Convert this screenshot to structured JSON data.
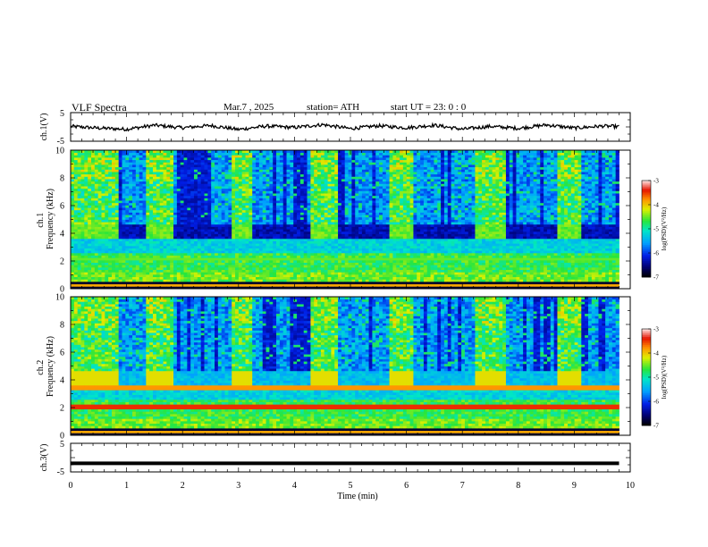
{
  "header": {
    "title": "VLF  Spectra",
    "date": "Mar.7  , 2025",
    "station": "station= ATH",
    "start_ut": "start  UT  =    23: 0   : 0"
  },
  "chart_data": [
    {
      "type": "line",
      "title": "VLF  Spectra",
      "ylabel": "ch.1(V)",
      "xlabel": "Time  (min)",
      "xlim": [
        0,
        10
      ],
      "ylim": [
        -5,
        5
      ],
      "yticks": [
        "5",
        "-5"
      ],
      "series": [
        {
          "x": [
            0,
            0.5,
            1,
            1.5,
            2,
            2.5,
            3,
            3.5,
            4,
            4.5,
            5,
            5.5,
            6,
            6.5,
            7,
            7.5,
            8,
            8.5,
            9,
            9.5,
            9.8
          ],
          "y": [
            0.2,
            -0.4,
            -0.8,
            0.6,
            -0.3,
            0.5,
            -0.9,
            0.3,
            -0.2,
            0.8,
            -0.6,
            0.4,
            -0.3,
            0.6,
            -0.8,
            0.2,
            -0.5,
            0.7,
            -0.4,
            0.3,
            0.1
          ]
        }
      ]
    },
    {
      "type": "heatmap",
      "ylabel": "ch.1\nFrequency  (kHz)",
      "xlim": [
        0,
        10
      ],
      "ylim": [
        0,
        10
      ],
      "yticks": [
        "0",
        "2",
        "4",
        "6",
        "8",
        "10"
      ],
      "colorbar": {
        "label": "log(PSD)(V²/Hz)",
        "range": [
          -7,
          -3
        ],
        "ticks": [
          "-3",
          "-4",
          "-5",
          "-6",
          "-7"
        ]
      },
      "quiet_intervals_min": [
        [
          0.85,
          1.35
        ],
        [
          1.82,
          2.85
        ],
        [
          3.25,
          4.3
        ],
        [
          4.8,
          5.72
        ],
        [
          6.15,
          7.22
        ],
        [
          7.8,
          8.7
        ],
        [
          9.1,
          9.8
        ]
      ],
      "active_intervals_min": [
        [
          0.0,
          0.85
        ],
        [
          1.35,
          1.82
        ],
        [
          2.85,
          3.25
        ],
        [
          4.3,
          4.8
        ],
        [
          5.72,
          6.15
        ],
        [
          7.22,
          7.8
        ],
        [
          8.7,
          9.1
        ]
      ]
    },
    {
      "type": "heatmap",
      "ylabel": "ch.2\nFrequency  (kHz)",
      "xlim": [
        0,
        10
      ],
      "ylim": [
        0,
        10
      ],
      "yticks": [
        "0",
        "2",
        "4",
        "6",
        "8",
        "10"
      ],
      "colorbar": {
        "label": "log(PSD)(V²/Hz)",
        "range": [
          -7,
          -3
        ],
        "ticks": [
          "-3",
          "-4",
          "-5",
          "-6",
          "-7"
        ]
      },
      "quiet_intervals_min": [
        [
          0.85,
          1.35
        ],
        [
          1.82,
          2.85
        ],
        [
          3.25,
          4.3
        ],
        [
          4.8,
          5.72
        ],
        [
          6.15,
          7.22
        ],
        [
          7.8,
          8.7
        ],
        [
          9.1,
          9.8
        ]
      ],
      "active_intervals_min": [
        [
          0.0,
          0.85
        ],
        [
          1.35,
          1.82
        ],
        [
          2.85,
          3.25
        ],
        [
          4.3,
          4.8
        ],
        [
          5.72,
          6.15
        ],
        [
          7.22,
          7.8
        ],
        [
          8.7,
          9.1
        ]
      ]
    },
    {
      "type": "line",
      "ylabel": "ch.3(V)",
      "xlabel": "Time  (min)",
      "xlim": [
        0,
        10
      ],
      "ylim": [
        -5,
        5
      ],
      "yticks": [
        "5",
        "-5"
      ],
      "xticks": [
        "0",
        "1",
        "2",
        "3",
        "4",
        "5",
        "6",
        "7",
        "8",
        "9",
        "10"
      ],
      "series": [
        {
          "x": [
            0,
            9.8
          ],
          "y": [
            -2,
            -2
          ]
        }
      ]
    }
  ]
}
